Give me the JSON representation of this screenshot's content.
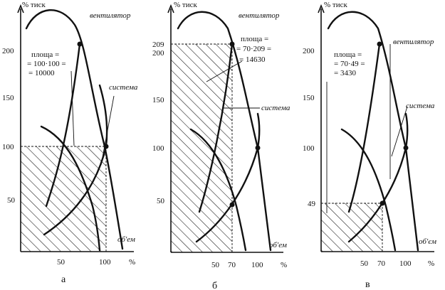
{
  "panels": [
    {
      "caption": "а",
      "y_axis_label": "% тиск",
      "x_axis_label": "об'ем",
      "x_unit": "%",
      "fan_label": "вентилятор",
      "system_label": "система",
      "y_ticks": [
        "200",
        "150",
        "100",
        "50"
      ],
      "x_ticks": [
        "50",
        "100"
      ],
      "area_lines": [
        "площа =",
        "= 100·100 =",
        "= 10000"
      ],
      "operating_point": {
        "flow": 100,
        "pressure": 100
      }
    },
    {
      "caption": "б",
      "y_axis_label": "% тиск",
      "x_axis_label": "об'ем",
      "x_unit": "%",
      "fan_label": "вентилятор",
      "system_label": "система",
      "y_ticks": [
        "209",
        "200",
        "150",
        "100",
        "50"
      ],
      "x_ticks": [
        "50",
        "70",
        "100"
      ],
      "area_lines": [
        "площа =",
        "= 70·209 =",
        "= 14630"
      ],
      "operating_point": {
        "flow": 70,
        "pressure": 209
      }
    },
    {
      "caption": "в",
      "y_axis_label": "% тиск",
      "x_axis_label": "об'єм",
      "x_unit": "%",
      "fan_label": "вентилятор",
      "system_label": "система",
      "y_ticks": [
        "200",
        "150",
        "100",
        "49"
      ],
      "x_ticks": [
        "50",
        "70",
        "100"
      ],
      "area_lines": [
        "площа =",
        "= 70·49 =",
        "= 3430"
      ],
      "operating_point": {
        "flow": 70,
        "pressure": 49
      }
    }
  ]
}
